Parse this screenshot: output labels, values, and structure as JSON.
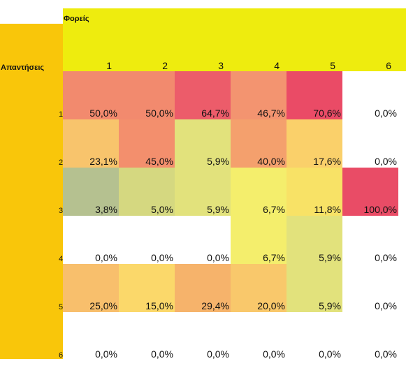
{
  "header": {
    "col_title": "Φορείς",
    "row_title": "Απαντήσεις"
  },
  "columns": [
    "1",
    "2",
    "3",
    "4",
    "5",
    "6"
  ],
  "rows": [
    {
      "label": "1",
      "cells": [
        {
          "value": "50,0%",
          "color": "#f28a6e"
        },
        {
          "value": "50,0%",
          "color": "#f28a6e"
        },
        {
          "value": "64,7%",
          "color": "#ec5c6a"
        },
        {
          "value": "46,7%",
          "color": "#f39470"
        },
        {
          "value": "70,6%",
          "color": "#ea4b66"
        },
        {
          "value": "0,0%",
          "color": "#ffffff"
        }
      ]
    },
    {
      "label": "2",
      "cells": [
        {
          "value": "23,1%",
          "color": "#f8c46c"
        },
        {
          "value": "45,0%",
          "color": "#f38f6d"
        },
        {
          "value": "5,9%",
          "color": "#e2e27c"
        },
        {
          "value": "40,0%",
          "color": "#f4a06d"
        },
        {
          "value": "17,6%",
          "color": "#fad06a"
        },
        {
          "value": "0,0%",
          "color": "#ffffff"
        }
      ]
    },
    {
      "label": "3",
      "cells": [
        {
          "value": "3,8%",
          "color": "#b5c190"
        },
        {
          "value": "5,0%",
          "color": "#d5d880"
        },
        {
          "value": "5,9%",
          "color": "#e2e27c"
        },
        {
          "value": "6,7%",
          "color": "#f4ee6c"
        },
        {
          "value": "11,8%",
          "color": "#f8e266"
        },
        {
          "value": "100,0%",
          "color": "#e94c66"
        }
      ]
    },
    {
      "label": "4",
      "cells": [
        {
          "value": "0,0%",
          "color": "#ffffff"
        },
        {
          "value": "0,0%",
          "color": "#ffffff"
        },
        {
          "value": "0,0%",
          "color": "#ffffff"
        },
        {
          "value": "6,7%",
          "color": "#f4ee6c"
        },
        {
          "value": "5,9%",
          "color": "#e2e27c"
        },
        {
          "value": "0,0%",
          "color": "#ffffff"
        }
      ]
    },
    {
      "label": "5",
      "cells": [
        {
          "value": "25,0%",
          "color": "#f8bf6c"
        },
        {
          "value": "15,0%",
          "color": "#fbd86a"
        },
        {
          "value": "29,4%",
          "color": "#f6b36b"
        },
        {
          "value": "20,0%",
          "color": "#f9c86b"
        },
        {
          "value": "5,9%",
          "color": "#e2e27c"
        },
        {
          "value": "0,0%",
          "color": "#ffffff"
        }
      ]
    },
    {
      "label": "6",
      "cells": [
        {
          "value": "0,0%",
          "color": "#ffffff"
        },
        {
          "value": "0,0%",
          "color": "#ffffff"
        },
        {
          "value": "0,0%",
          "color": "#ffffff"
        },
        {
          "value": "0,0%",
          "color": "#ffffff"
        },
        {
          "value": "0,0%",
          "color": "#ffffff"
        },
        {
          "value": "0,0%",
          "color": "#ffffff"
        }
      ]
    }
  ]
}
